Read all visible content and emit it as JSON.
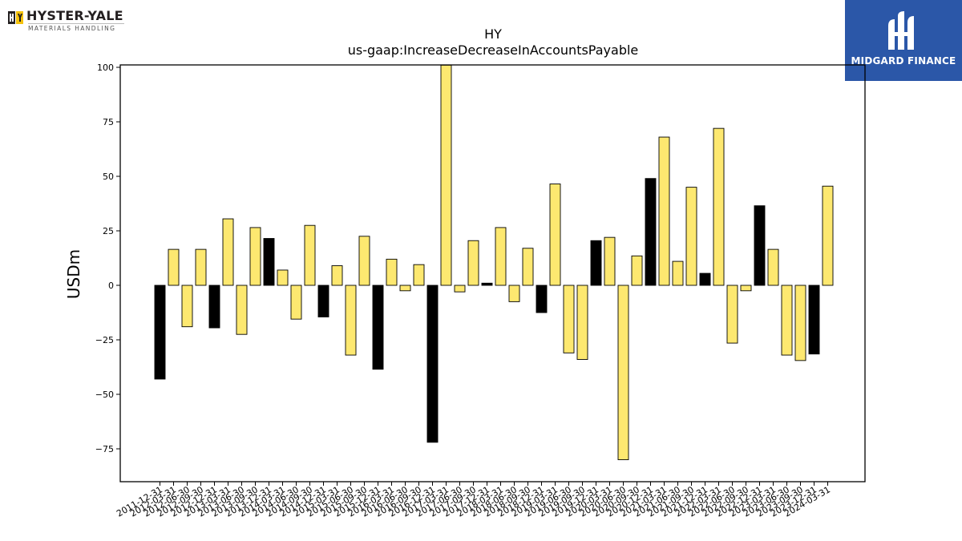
{
  "logos": {
    "left_name": "HYSTER-YALE",
    "left_sub": "MATERIALS HANDLING",
    "right_name": "MIDGARD FINANCE"
  },
  "colors": {
    "positive_bar": "#fde870",
    "highlight_bar": "#000000",
    "bar_edge": "#000000",
    "midgard_bg": "#2b57a8"
  },
  "chart_data": {
    "type": "bar",
    "title_line1": "HY",
    "title_line2": "us-gaap:IncreaseDecreaseInAccountsPayable",
    "ylabel": "USDm",
    "xlabel": "",
    "ylim": [
      -90,
      100
    ],
    "yticks": [
      100,
      75,
      50,
      25,
      0,
      -25,
      -50,
      -75
    ],
    "ytick_labels": [
      "100",
      "75",
      "50",
      "25",
      "0",
      "−25",
      "−50",
      "−75"
    ],
    "grid": false,
    "categories": [
      "2011-12-31",
      "2012-03-31",
      "2012-06-30",
      "2012-09-30",
      "2012-12-31",
      "2013-03-31",
      "2013-06-30",
      "2013-09-30",
      "2013-12-31",
      "2014-03-31",
      "2014-06-30",
      "2014-09-30",
      "2014-12-31",
      "2015-03-31",
      "2015-06-30",
      "2015-09-30",
      "2015-12-31",
      "2016-03-31",
      "2016-06-30",
      "2016-09-30",
      "2016-12-31",
      "2017-03-31",
      "2017-06-30",
      "2017-09-30",
      "2017-12-31",
      "2018-03-31",
      "2018-06-30",
      "2018-09-30",
      "2018-12-31",
      "2019-03-31",
      "2019-06-30",
      "2019-09-30",
      "2019-12-31",
      "2020-03-31",
      "2020-06-30",
      "2020-09-30",
      "2020-12-31",
      "2021-03-31",
      "2021-06-30",
      "2021-09-30",
      "2021-12-31",
      "2022-03-31",
      "2022-06-30",
      "2022-09-30",
      "2022-12-31",
      "2023-03-31",
      "2023-06-30",
      "2023-09-30",
      "2023-12-31",
      "2024-03-31"
    ],
    "xtick_labels": [
      "2011-12-31",
      "2012-03-31",
      "2012-06-30",
      "2012-09-30",
      "2012-12-31",
      "2013-03-31",
      "2013-06-30",
      "2013-09-30",
      "2013-12-31",
      "2014-03-31",
      "2014-06-30",
      "2014-09-30",
      "2014-12-31",
      "2015-03-31",
      "2015-06-30",
      "2015-09-30",
      "2015-12-31",
      "2016-03-31",
      "2016-06-30",
      "2016-09-30",
      "2016-12-31",
      "2017-03-31",
      "2017-06-30",
      "2017-09-30",
      "2017-12-31",
      "2018-03-31",
      "2018-06-30",
      "2018-09-30",
      "2018-12-31",
      "2019-03-31",
      "2019-06-30",
      "2019-09-30",
      "2019-12-31",
      "2020-03-31",
      "2020-06-30",
      "2020-09-30",
      "2020-12-31",
      "2021-03-31",
      "2021-06-30",
      "2021-09-30",
      "2021-12-31",
      "2022-03-31",
      "2022-06-30",
      "2022-09-30",
      "2022-12-31",
      "2023-03-31",
      "2023-06-30",
      "2023-09-30",
      "2023-12-31",
      "2024-03-31"
    ],
    "values": [
      -43,
      16.5,
      -19,
      16.5,
      -19.5,
      30.5,
      -22.5,
      26.5,
      21.5,
      7,
      -15.5,
      27.5,
      -14.5,
      9,
      -32,
      22.5,
      -38.5,
      12,
      -2.5,
      9.5,
      -72,
      101,
      -3,
      20.5,
      1,
      26.5,
      -7.5,
      17,
      -12.5,
      46.5,
      -31,
      -34,
      20.5,
      22,
      -80,
      13.5,
      49,
      68,
      11,
      45,
      5.5,
      72,
      -26.5,
      -2.5,
      36.5,
      16.5,
      -32,
      -34.5,
      -31.5,
      45.5
    ],
    "highlight": [
      true,
      false,
      false,
      false,
      true,
      false,
      false,
      false,
      true,
      false,
      false,
      false,
      true,
      false,
      false,
      false,
      true,
      false,
      false,
      false,
      true,
      false,
      false,
      false,
      true,
      false,
      false,
      false,
      true,
      false,
      false,
      false,
      true,
      false,
      false,
      false,
      true,
      false,
      false,
      false,
      true,
      false,
      false,
      false,
      true,
      false,
      false,
      false,
      true,
      false
    ]
  }
}
